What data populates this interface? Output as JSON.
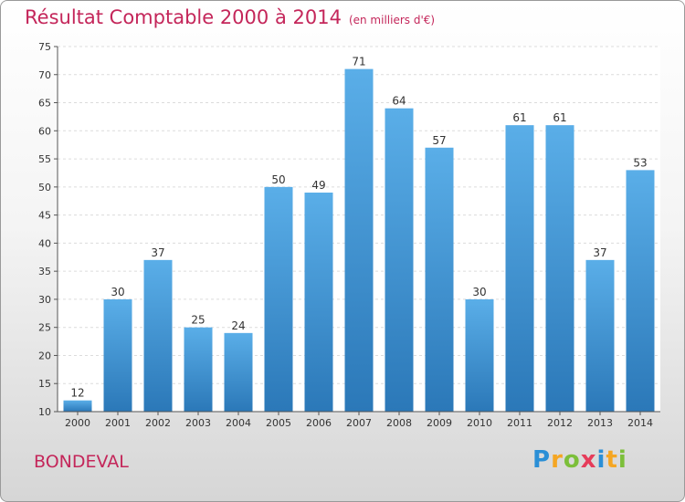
{
  "header": {
    "title": "Résultat Comptable 2000 à 2014",
    "subtitle": "(en milliers d'€)"
  },
  "footer": {
    "commune": "BONDEVAL",
    "logo_letters": [
      "P",
      "r",
      "o",
      "x",
      "i",
      "t",
      "i"
    ],
    "logo_colors": [
      "#2b8fd6",
      "#f5a623",
      "#7cbf3a",
      "#e63c5a",
      "#2b8fd6",
      "#f5a623",
      "#7cbf3a"
    ]
  },
  "colors": {
    "bar_top": "#5aaee8",
    "bar_bottom": "#2b78b8",
    "title": "#c4265a"
  },
  "chart_data": {
    "type": "bar",
    "title": "Résultat Comptable 2000 à 2014",
    "subtitle": "(en milliers d'€)",
    "categories": [
      "2000",
      "2001",
      "2002",
      "2003",
      "2004",
      "2005",
      "2006",
      "2007",
      "2008",
      "2009",
      "2010",
      "2011",
      "2012",
      "2013",
      "2014"
    ],
    "values": [
      12,
      30,
      37,
      25,
      24,
      50,
      49,
      71,
      64,
      57,
      30,
      61,
      61,
      37,
      53
    ],
    "xlabel": "",
    "ylabel": "",
    "ylim": [
      10,
      75
    ],
    "yticks": [
      10,
      15,
      20,
      25,
      30,
      35,
      40,
      45,
      50,
      55,
      60,
      65,
      70,
      75
    ],
    "grid": true,
    "legend": "none"
  }
}
